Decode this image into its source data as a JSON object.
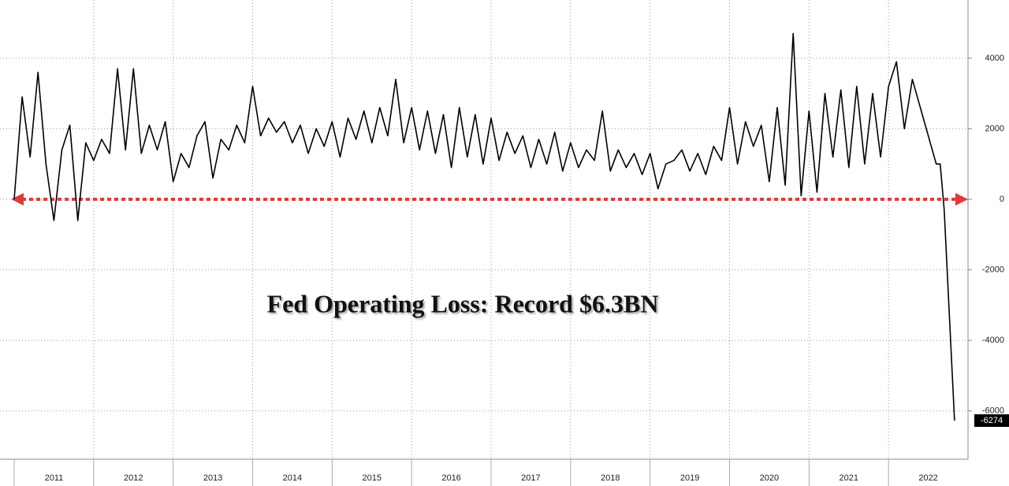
{
  "chart_data": {
    "type": "line",
    "annotation": "Fed Operating Loss: Record $6.3BN",
    "x": [
      2011.0,
      2011.1,
      2011.2,
      2011.3,
      2011.4,
      2011.5,
      2011.6,
      2011.7,
      2011.8,
      2011.9,
      2012.0,
      2012.1,
      2012.2,
      2012.3,
      2012.4,
      2012.5,
      2012.6,
      2012.7,
      2012.8,
      2012.9,
      2013.0,
      2013.1,
      2013.2,
      2013.3,
      2013.4,
      2013.5,
      2013.6,
      2013.7,
      2013.8,
      2013.9,
      2014.0,
      2014.1,
      2014.2,
      2014.3,
      2014.4,
      2014.5,
      2014.6,
      2014.7,
      2014.8,
      2014.9,
      2015.0,
      2015.1,
      2015.2,
      2015.3,
      2015.4,
      2015.5,
      2015.6,
      2015.7,
      2015.8,
      2015.9,
      2016.0,
      2016.1,
      2016.2,
      2016.3,
      2016.4,
      2016.5,
      2016.6,
      2016.7,
      2016.8,
      2016.9,
      2017.0,
      2017.1,
      2017.2,
      2017.3,
      2017.4,
      2017.5,
      2017.6,
      2017.7,
      2017.8,
      2017.9,
      2018.0,
      2018.1,
      2018.2,
      2018.3,
      2018.4,
      2018.5,
      2018.6,
      2018.7,
      2018.8,
      2018.9,
      2019.0,
      2019.1,
      2019.2,
      2019.3,
      2019.4,
      2019.5,
      2019.6,
      2019.7,
      2019.8,
      2019.9,
      2020.0,
      2020.1,
      2020.2,
      2020.3,
      2020.4,
      2020.5,
      2020.6,
      2020.7,
      2020.8,
      2020.9,
      2021.0,
      2021.1,
      2021.2,
      2021.3,
      2021.4,
      2021.5,
      2021.6,
      2021.7,
      2021.8,
      2021.9,
      2022.0,
      2022.1,
      2022.2,
      2022.3,
      2022.4,
      2022.5,
      2022.6,
      2022.65,
      2022.7,
      2022.83
    ],
    "series": [
      {
        "color": "#000000",
        "values": [
          0,
          2900,
          1200,
          3600,
          1000,
          -600,
          1400,
          2100,
          -600,
          1600,
          1100,
          1700,
          1300,
          3700,
          1400,
          3700,
          1300,
          2100,
          1400,
          2200,
          500,
          1300,
          900,
          1800,
          2200,
          600,
          1700,
          1400,
          2100,
          1600,
          3200,
          1800,
          2300,
          1900,
          2200,
          1600,
          2100,
          1300,
          2000,
          1500,
          2200,
          1200,
          2300,
          1700,
          2500,
          1600,
          2600,
          1800,
          3400,
          1600,
          2600,
          1400,
          2500,
          1300,
          2400,
          900,
          2600,
          1200,
          2400,
          1000,
          2300,
          1100,
          1900,
          1300,
          1800,
          900,
          1700,
          1000,
          1900,
          800,
          1600,
          900,
          1400,
          1100,
          2500,
          800,
          1400,
          900,
          1300,
          700,
          1300,
          300,
          1000,
          1100,
          1400,
          800,
          1300,
          700,
          1500,
          1100,
          2600,
          1000,
          2200,
          1500,
          2100,
          500,
          2600,
          400,
          4700,
          100,
          2500,
          200,
          3000,
          1200,
          3100,
          900,
          3200,
          1000,
          3000,
          1200,
          3200,
          3900,
          2000,
          3400,
          2600,
          1800,
          1000,
          1000,
          -300,
          -6274
        ]
      }
    ],
    "xlim": [
      2011,
      2023
    ],
    "xticks": [
      2011,
      2012,
      2013,
      2014,
      2015,
      2016,
      2017,
      2018,
      2019,
      2020,
      2021,
      2022
    ],
    "ylim": [
      -7370,
      5650
    ],
    "yticks": [
      4000,
      2000,
      0,
      -2000,
      -4000,
      -6000
    ],
    "grid": true
  }
}
